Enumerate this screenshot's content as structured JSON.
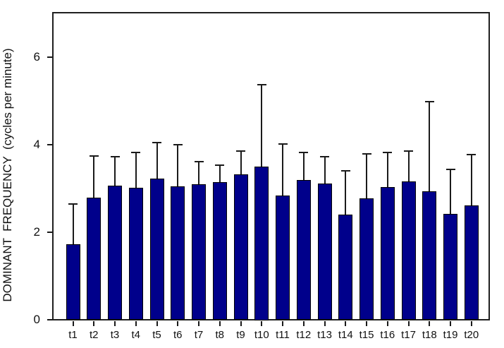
{
  "chart_data": {
    "type": "bar",
    "title": "",
    "xlabel": "",
    "ylabel": "DOMINANT  FREQUENCY  (cycles per minute)",
    "ylim": [
      0,
      7
    ],
    "yticks": [
      0,
      2,
      4,
      6
    ],
    "ytick_labels": [
      "0",
      "2",
      "4",
      "6"
    ],
    "grid": "off",
    "legend_position": "none",
    "error_bars": "upper-only",
    "categories": [
      "t1",
      "t2",
      "t3",
      "t4",
      "t5",
      "t6",
      "t7",
      "t8",
      "t9",
      "t10",
      "t11",
      "t12",
      "t13",
      "t14",
      "t15",
      "t16",
      "t17",
      "t18",
      "t19",
      "t20"
    ],
    "values": [
      1.72,
      2.79,
      3.06,
      3.01,
      3.21,
      3.04,
      3.09,
      3.14,
      3.31,
      3.5,
      2.83,
      3.19,
      3.1,
      2.4,
      2.76,
      3.02,
      3.16,
      2.92,
      2.41,
      2.6
    ],
    "error_bar_tops": [
      2.64,
      3.74,
      3.72,
      3.81,
      4.04,
      4.0,
      3.6,
      3.53,
      3.85,
      5.36,
      4.01,
      3.81,
      3.71,
      3.39,
      3.79,
      3.81,
      3.85,
      4.97,
      3.43,
      3.77
    ],
    "colors": {
      "bar_fill": "#00008B",
      "bar_outline": "#000000",
      "error_bar": "#1a1a1a",
      "axis_frame": "#1f1f1f",
      "text": "#111111",
      "background": "#ffffff"
    }
  }
}
